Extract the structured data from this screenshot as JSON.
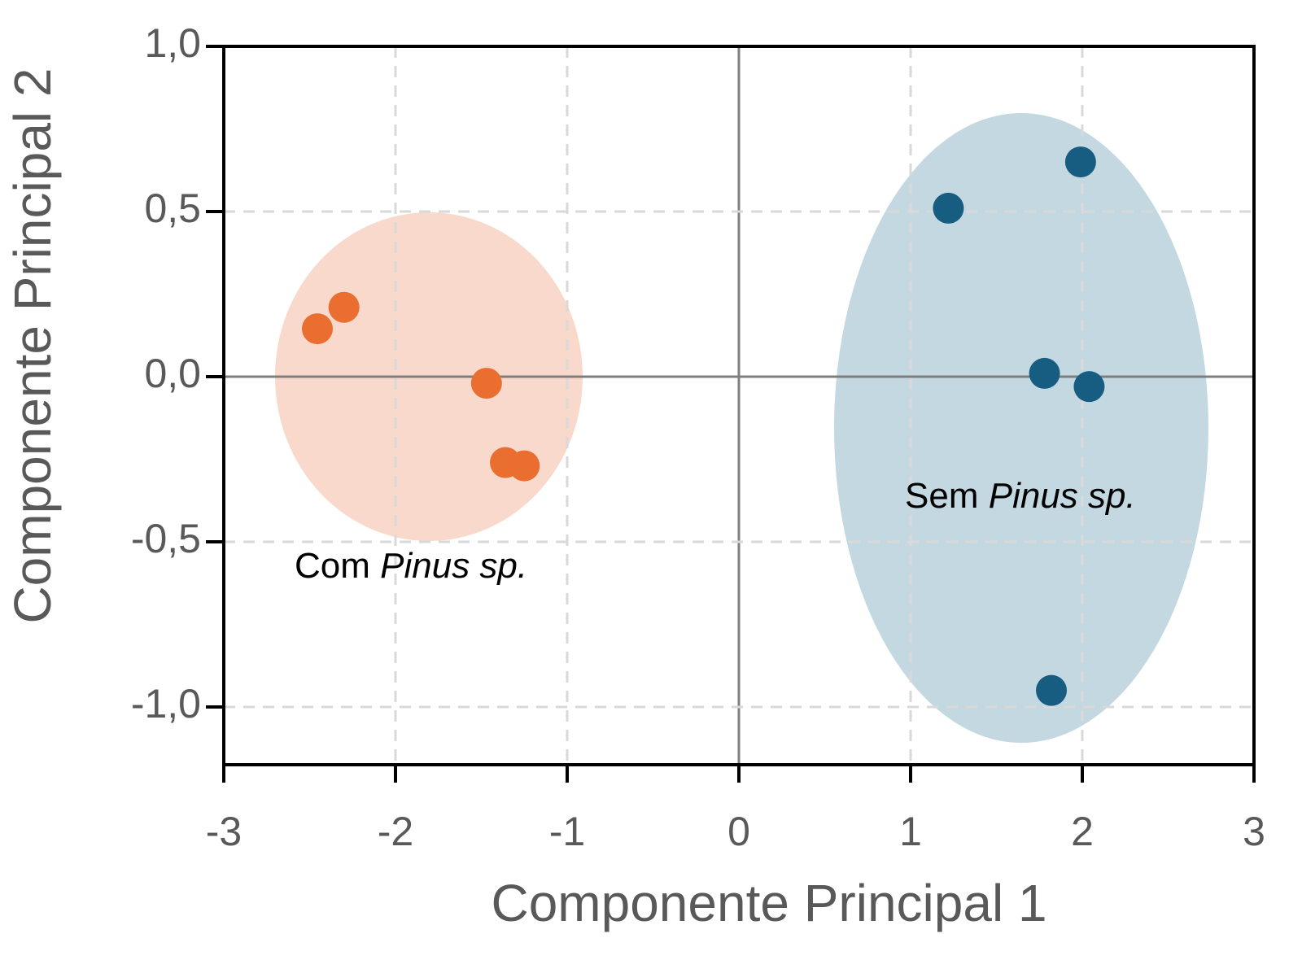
{
  "chart_data": {
    "type": "scatter",
    "xlabel": "Componente Principal 1",
    "ylabel": "Componente Principal 2",
    "xlim": [
      -3,
      3
    ],
    "xticks": [
      -3,
      -2,
      -1,
      0,
      1,
      2,
      3
    ],
    "ylim": [
      -1.175,
      1.0
    ],
    "yticks": [
      {
        "value": 1.0,
        "label": "1,0"
      },
      {
        "value": 0.5,
        "label": "0,5"
      },
      {
        "value": 0.0,
        "label": "0,0"
      },
      {
        "value": -0.5,
        "label": "-0,5"
      },
      {
        "value": -1.0,
        "label": "-1,0"
      }
    ],
    "grid": true,
    "series": [
      {
        "color": "#e96e2f",
        "x": [
          -2.455,
          -2.3,
          -1.47,
          -1.36,
          -1.25
        ],
        "values": [
          0.145,
          0.21,
          -0.02,
          -0.26,
          -0.27
        ]
      },
      {
        "color": "#175d82",
        "x": [
          1.22,
          1.99,
          1.78,
          2.04,
          1.82
        ],
        "values": [
          0.51,
          0.65,
          0.01,
          -0.03,
          -0.95
        ]
      }
    ],
    "annotations": [
      {
        "text": "Com",
        "italic": "Pinus sp."
      },
      {
        "text": "Sem",
        "italic": "Pinus sp."
      }
    ]
  }
}
